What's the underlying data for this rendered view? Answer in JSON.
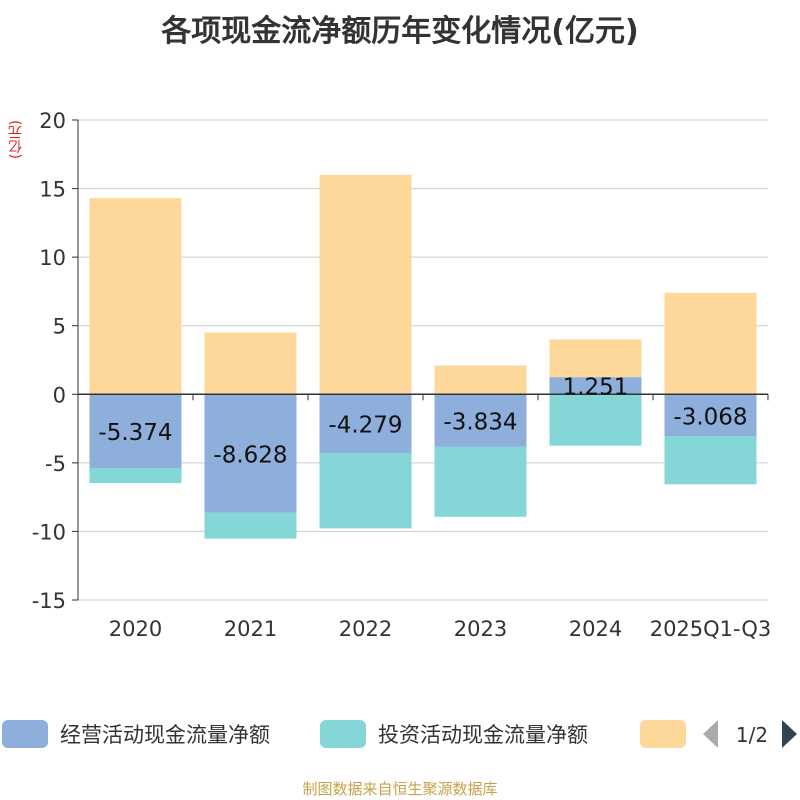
{
  "title": "各项现金流净额历年变化情况(亿元)",
  "source": "制图数据来自恒生聚源数据库",
  "unit": "(亿元)",
  "colors": {
    "operating": "#8eaedb",
    "investing": "#85d6d6",
    "financing": "#fdd89a",
    "grid": "#cccccc",
    "axis": "#333333",
    "text": "#333333",
    "unit": "#e02020",
    "source": "#c8a24a",
    "pager_inactive": "#aaaaaa",
    "pager_active": "#2f4554"
  },
  "legend": {
    "page": "1/2",
    "prev_icon": "triangle-left-icon",
    "next_icon": "triangle-right-icon"
  },
  "chart_data": {
    "type": "bar",
    "stacked": true,
    "title": "各项现金流净额历年变化情况(亿元)",
    "xlabel": "",
    "ylabel": "(亿元)",
    "ylim": [
      -15,
      20
    ],
    "yticks": [
      20,
      15,
      10,
      5,
      0,
      -5,
      -10,
      -15
    ],
    "grid": true,
    "legend_position": "bottom",
    "categories": [
      "2020",
      "2021",
      "2022",
      "2023",
      "2024",
      "2025Q1-Q3"
    ],
    "series": [
      {
        "name": "经营活动现金流量净额",
        "color": "#8eaedb",
        "values": [
          -5.374,
          -8.628,
          -4.279,
          -3.834,
          1.251,
          -3.068
        ],
        "labels": [
          "-5.374",
          "-8.628",
          "-4.279",
          "-3.834",
          "1.251",
          "-3.068"
        ]
      },
      {
        "name": "投资活动现金流量净额",
        "color": "#85d6d6",
        "values": [
          -1.1,
          -1.9,
          -5.5,
          -5.1,
          -3.75,
          -3.5
        ]
      },
      {
        "name": "",
        "color": "#fdd89a",
        "values": [
          14.3,
          4.5,
          16.0,
          2.1,
          2.75,
          7.4
        ]
      }
    ]
  }
}
